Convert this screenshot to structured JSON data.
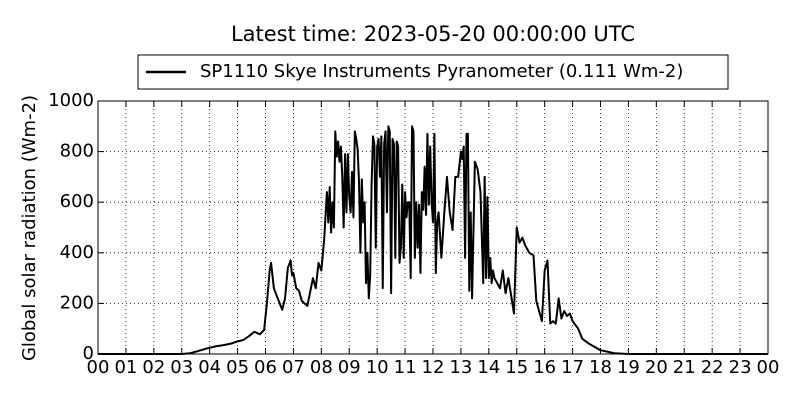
{
  "chart_data": {
    "type": "line",
    "title": "Latest time: 2023-05-20 00:00:00 UTC",
    "y_label": "Global solar radiation (Wm-2)",
    "legend_position": "upper center",
    "grid": true,
    "xlim": [
      0,
      24
    ],
    "ylim": [
      0,
      1000
    ],
    "xticks": [
      {
        "value": 0,
        "label": "00"
      },
      {
        "value": 1,
        "label": "01"
      },
      {
        "value": 2,
        "label": "02"
      },
      {
        "value": 3,
        "label": "03"
      },
      {
        "value": 4,
        "label": "04"
      },
      {
        "value": 5,
        "label": "05"
      },
      {
        "value": 6,
        "label": "06"
      },
      {
        "value": 7,
        "label": "07"
      },
      {
        "value": 8,
        "label": "08"
      },
      {
        "value": 9,
        "label": "09"
      },
      {
        "value": 10,
        "label": "10"
      },
      {
        "value": 11,
        "label": "11"
      },
      {
        "value": 12,
        "label": "12"
      },
      {
        "value": 13,
        "label": "13"
      },
      {
        "value": 14,
        "label": "14"
      },
      {
        "value": 15,
        "label": "15"
      },
      {
        "value": 16,
        "label": "16"
      },
      {
        "value": 17,
        "label": "17"
      },
      {
        "value": 18,
        "label": "18"
      },
      {
        "value": 19,
        "label": "19"
      },
      {
        "value": 20,
        "label": "20"
      },
      {
        "value": 21,
        "label": "21"
      },
      {
        "value": 22,
        "label": "22"
      },
      {
        "value": 23,
        "label": "23"
      },
      {
        "value": 24,
        "label": "00"
      }
    ],
    "yticks": [
      0,
      200,
      400,
      600,
      800,
      1000
    ],
    "x": [
      0,
      1,
      2,
      3,
      3.3,
      3.6,
      3.9,
      4.2,
      4.5,
      4.8,
      5.0,
      5.2,
      5.4,
      5.6,
      5.8,
      5.95,
      6.05,
      6.15,
      6.2,
      6.3,
      6.4,
      6.6,
      6.7,
      6.8,
      6.9,
      6.95,
      7.0,
      7.1,
      7.2,
      7.3,
      7.5,
      7.7,
      7.8,
      7.9,
      8.0,
      8.1,
      8.2,
      8.25,
      8.3,
      8.35,
      8.4,
      8.45,
      8.5,
      8.55,
      8.6,
      8.65,
      8.7,
      8.75,
      8.8,
      8.85,
      8.9,
      8.95,
      9.0,
      9.05,
      9.1,
      9.15,
      9.2,
      9.25,
      9.3,
      9.35,
      9.4,
      9.45,
      9.5,
      9.55,
      9.6,
      9.65,
      9.7,
      9.75,
      9.8,
      9.85,
      9.9,
      9.95,
      10.0,
      10.05,
      10.1,
      10.15,
      10.2,
      10.25,
      10.3,
      10.35,
      10.4,
      10.45,
      10.5,
      10.55,
      10.6,
      10.65,
      10.7,
      10.75,
      10.8,
      10.85,
      10.9,
      10.95,
      11.0,
      11.05,
      11.1,
      11.15,
      11.2,
      11.25,
      11.3,
      11.35,
      11.4,
      11.45,
      11.5,
      11.55,
      11.6,
      11.65,
      11.7,
      11.75,
      11.8,
      11.85,
      11.9,
      11.95,
      12.0,
      12.05,
      12.1,
      12.15,
      12.2,
      12.3,
      12.4,
      12.5,
      12.6,
      12.7,
      12.8,
      12.9,
      13.0,
      13.05,
      13.1,
      13.15,
      13.2,
      13.25,
      13.3,
      13.35,
      13.4,
      13.5,
      13.6,
      13.7,
      13.8,
      13.85,
      13.9,
      13.95,
      14.0,
      14.05,
      14.1,
      14.15,
      14.2,
      14.3,
      14.4,
      14.5,
      14.6,
      14.7,
      14.8,
      14.9,
      15.0,
      15.1,
      15.2,
      15.3,
      15.45,
      15.6,
      15.7,
      15.8,
      15.9,
      16.0,
      16.1,
      16.2,
      16.3,
      16.4,
      16.5,
      16.6,
      16.7,
      16.8,
      16.9,
      17.0,
      17.2,
      17.35,
      17.6,
      18.0,
      18.5,
      19.0,
      20,
      21,
      22,
      23,
      24
    ],
    "series": [
      {
        "name": "SP1110 Skye Instruments Pyranometer (0.111 Wm-2)",
        "color": "#000000",
        "values": [
          0,
          0,
          0,
          0,
          3,
          12,
          22,
          30,
          35,
          42,
          50,
          55,
          70,
          88,
          78,
          95,
          200,
          330,
          360,
          260,
          230,
          175,
          220,
          340,
          370,
          310,
          320,
          260,
          250,
          210,
          190,
          300,
          260,
          360,
          330,
          450,
          640,
          520,
          660,
          480,
          600,
          500,
          880,
          780,
          840,
          760,
          820,
          700,
          500,
          790,
          560,
          790,
          620,
          560,
          720,
          540,
          880,
          850,
          810,
          680,
          400,
          690,
          520,
          600,
          280,
          400,
          220,
          310,
          670,
          860,
          830,
          420,
          820,
          850,
          700,
          860,
          260,
          830,
          880,
          560,
          900,
          880,
          240,
          850,
          830,
          380,
          840,
          820,
          360,
          420,
          670,
          380,
          640,
          540,
          600,
          600,
          300,
          900,
          880,
          380,
          600,
          420,
          590,
          320,
          640,
          570,
          740,
          550,
          870,
          590,
          820,
          600,
          520,
          870,
          320,
          520,
          560,
          380,
          550,
          700,
          560,
          490,
          700,
          700,
          800,
          770,
          820,
          380,
          870,
          870,
          250,
          560,
          220,
          760,
          730,
          640,
          280,
          700,
          300,
          620,
          300,
          380,
          280,
          330,
          300,
          280,
          260,
          330,
          240,
          300,
          230,
          160,
          500,
          440,
          460,
          430,
          400,
          390,
          210,
          170,
          130,
          330,
          370,
          120,
          130,
          120,
          220,
          140,
          170,
          150,
          160,
          130,
          100,
          60,
          40,
          15,
          3,
          0,
          0,
          0,
          0,
          0,
          0
        ]
      }
    ]
  }
}
